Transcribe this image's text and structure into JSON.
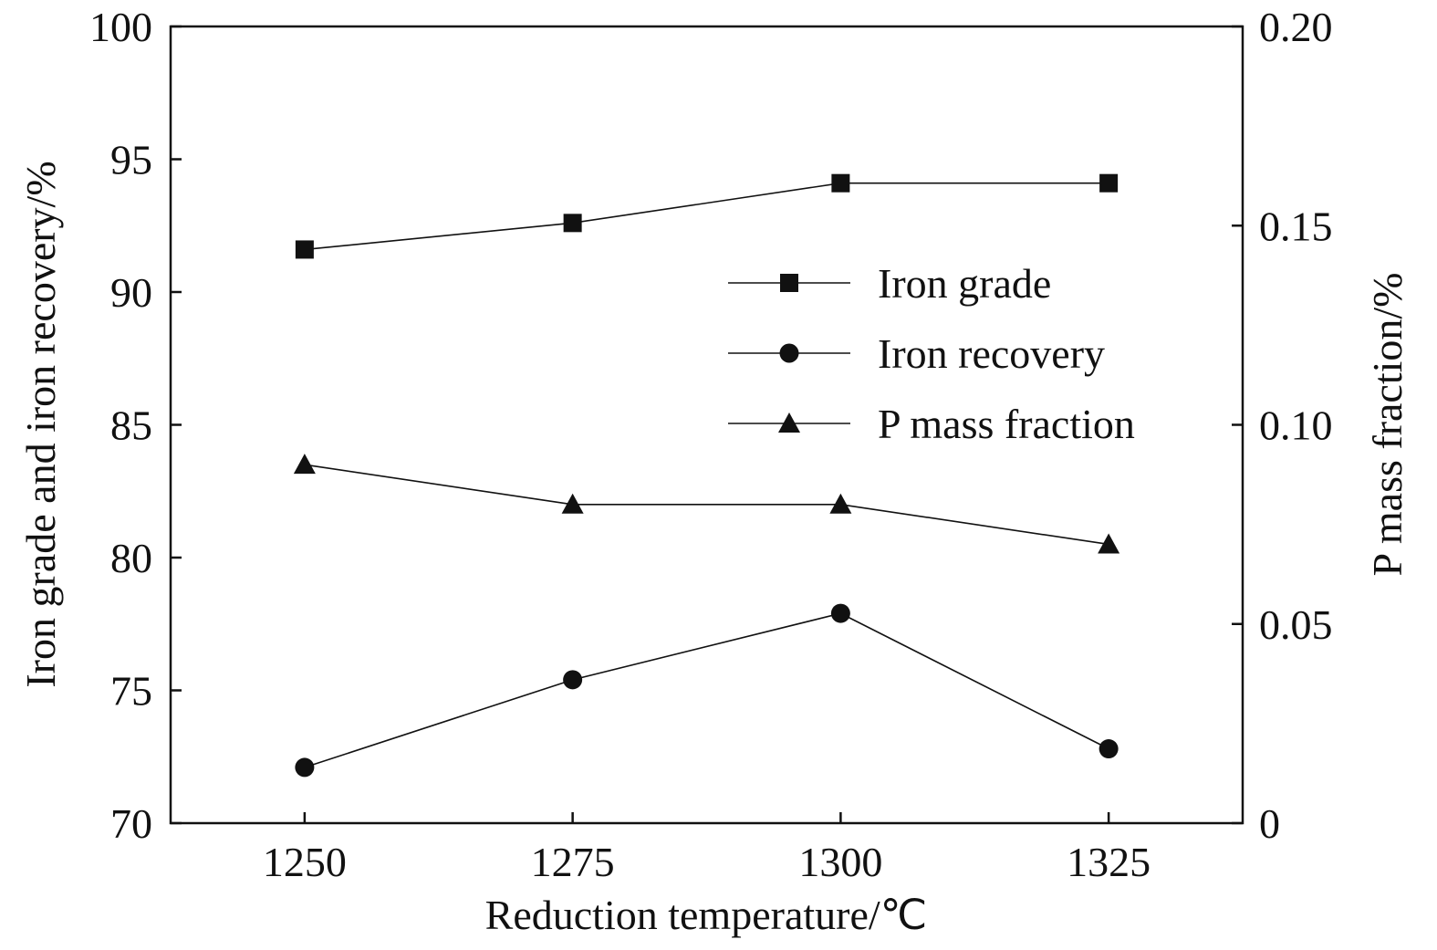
{
  "chart_data": {
    "type": "line",
    "x": [
      1250,
      1275,
      1300,
      1325
    ],
    "xlim": [
      1237.5,
      1337.5
    ],
    "x_ticks": [
      "1250",
      "1275",
      "1300",
      "1325"
    ],
    "xlabel": "Reduction temperature/℃",
    "ylabel_left": "Iron grade and iron recovery/%",
    "ylim_left": [
      70,
      100
    ],
    "y_ticks_left": [
      "70",
      "75",
      "80",
      "85",
      "90",
      "95",
      "100"
    ],
    "ylabel_right": "P mass fraction/%",
    "ylim_right": [
      0,
      0.2
    ],
    "y_ticks_right": [
      "0",
      "0.05",
      "0.10",
      "0.15",
      "0.20"
    ],
    "grid": false,
    "legend_position": "upper-right",
    "series": [
      {
        "name": "Iron grade",
        "axis": "left",
        "marker": "square",
        "values": [
          91.6,
          92.6,
          94.1,
          94.1
        ]
      },
      {
        "name": "Iron recovery",
        "axis": "left",
        "marker": "circle",
        "values": [
          72.1,
          75.4,
          77.9,
          72.8
        ]
      },
      {
        "name": "P mass fraction",
        "axis": "right",
        "marker": "triangle",
        "values": [
          0.09,
          0.08,
          0.08,
          0.07
        ]
      }
    ]
  }
}
